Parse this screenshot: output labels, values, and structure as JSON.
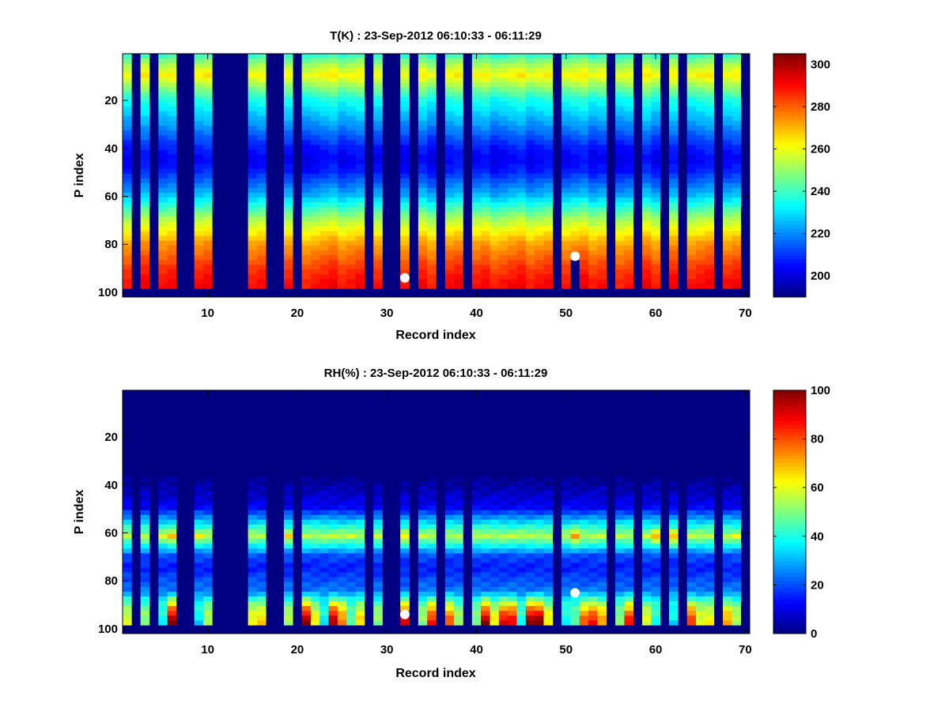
{
  "chart_data": [
    {
      "type": "heatmap",
      "title": "T(K) : 23-Sep-2012 06:10:33 - 06:11:29",
      "xlabel": "Record index",
      "ylabel": "P index",
      "xlim": [
        0.5,
        70.5
      ],
      "ylim": [
        0.5,
        102
      ],
      "y_reversed": true,
      "xticks": [
        10,
        20,
        30,
        40,
        50,
        60,
        70
      ],
      "yticks": [
        20,
        40,
        60,
        80,
        100
      ],
      "colormap": "jet",
      "clim": [
        190,
        305
      ],
      "colorbar_ticks": [
        200,
        220,
        240,
        260,
        280,
        300
      ],
      "valid_records": [
        1,
        3,
        5,
        6,
        9,
        10,
        15,
        16,
        19,
        21,
        22,
        23,
        24,
        25,
        26,
        27,
        29,
        32,
        34,
        35,
        37,
        38,
        40,
        41,
        42,
        43,
        44,
        45,
        46,
        47,
        48,
        50,
        51,
        52,
        53,
        54,
        56,
        57,
        59,
        60,
        62,
        64,
        65,
        66,
        68,
        69
      ],
      "data_p_range": [
        1,
        97
      ],
      "profile_p": [
        1,
        5,
        10,
        20,
        30,
        40,
        45,
        50,
        60,
        70,
        80,
        90,
        97
      ],
      "profile_values": [
        236,
        250,
        262,
        236,
        222,
        207,
        203,
        207,
        225,
        252,
        272,
        284,
        290
      ],
      "partial_records": [
        {
          "record": 51,
          "p_max": 85
        }
      ],
      "markers": [
        {
          "record": 32,
          "p": 94
        },
        {
          "record": 51,
          "p": 85
        }
      ]
    },
    {
      "type": "heatmap",
      "title": "RH(%) : 23-Sep-2012 06:10:33 - 06:11:29",
      "xlabel": "Record index",
      "ylabel": "P index",
      "xlim": [
        0.5,
        70.5
      ],
      "ylim": [
        0.5,
        102
      ],
      "y_reversed": true,
      "xticks": [
        10,
        20,
        30,
        40,
        50,
        60,
        70
      ],
      "yticks": [
        20,
        40,
        60,
        80,
        100
      ],
      "colormap": "jet",
      "clim": [
        0,
        100
      ],
      "colorbar_ticks": [
        0,
        20,
        40,
        60,
        80,
        100
      ],
      "valid_records": [
        1,
        3,
        5,
        6,
        9,
        10,
        15,
        16,
        19,
        21,
        22,
        23,
        24,
        25,
        26,
        27,
        29,
        32,
        34,
        35,
        37,
        38,
        40,
        41,
        42,
        43,
        44,
        45,
        46,
        47,
        48,
        50,
        51,
        52,
        53,
        54,
        56,
        57,
        59,
        60,
        62,
        64,
        65,
        66,
        68,
        69
      ],
      "data_p_range": [
        1,
        97
      ],
      "profile_p": [
        1,
        35,
        40,
        50,
        55,
        62,
        70,
        75,
        85,
        92,
        97
      ],
      "profile_values": [
        0,
        0,
        3,
        12,
        30,
        55,
        20,
        15,
        25,
        45,
        60
      ],
      "peak_rh_by_record": {
        "1": 50,
        "3": 48,
        "5": 60,
        "6": 68,
        "9": 62,
        "10": 50,
        "15": 55,
        "16": 50,
        "19": 65,
        "21": 55,
        "22": 50,
        "23": 45,
        "24": 52,
        "25": 42,
        "26": 58,
        "27": 45,
        "29": 50,
        "32": 65,
        "34": 55,
        "35": 55,
        "37": 55,
        "38": 45,
        "40": 50,
        "41": 42,
        "42": 52,
        "43": 40,
        "44": 55,
        "45": 45,
        "46": 48,
        "47": 42,
        "48": 50,
        "50": 55,
        "51": 72,
        "52": 40,
        "53": 45,
        "54": 50,
        "56": 52,
        "57": 45,
        "59": 50,
        "60": 70,
        "62": 70,
        "64": 45,
        "65": 52,
        "66": 52,
        "68": 48,
        "69": 60
      },
      "bottom_rh_by_record": {
        "1": 58,
        "3": 50,
        "5": 38,
        "6": 98,
        "9": 35,
        "10": 55,
        "15": 62,
        "16": 66,
        "19": 55,
        "21": 98,
        "22": 62,
        "23": 35,
        "24": 95,
        "25": 75,
        "26": 45,
        "27": 65,
        "29": 52,
        "32": 90,
        "34": 52,
        "35": 85,
        "37": 78,
        "38": 52,
        "40": 50,
        "41": 95,
        "42": 62,
        "43": 88,
        "44": 88,
        "45": 40,
        "46": 98,
        "47": 98,
        "48": 62,
        "50": 38,
        "51": 45,
        "52": 78,
        "53": 85,
        "54": 72,
        "56": 50,
        "57": 85,
        "59": 60,
        "60": 40,
        "62": 35,
        "64": 82,
        "65": 60,
        "66": 62,
        "68": 70,
        "69": 55
      },
      "markers": [
        {
          "record": 32,
          "p": 94
        },
        {
          "record": 51,
          "p": 85
        }
      ]
    }
  ]
}
